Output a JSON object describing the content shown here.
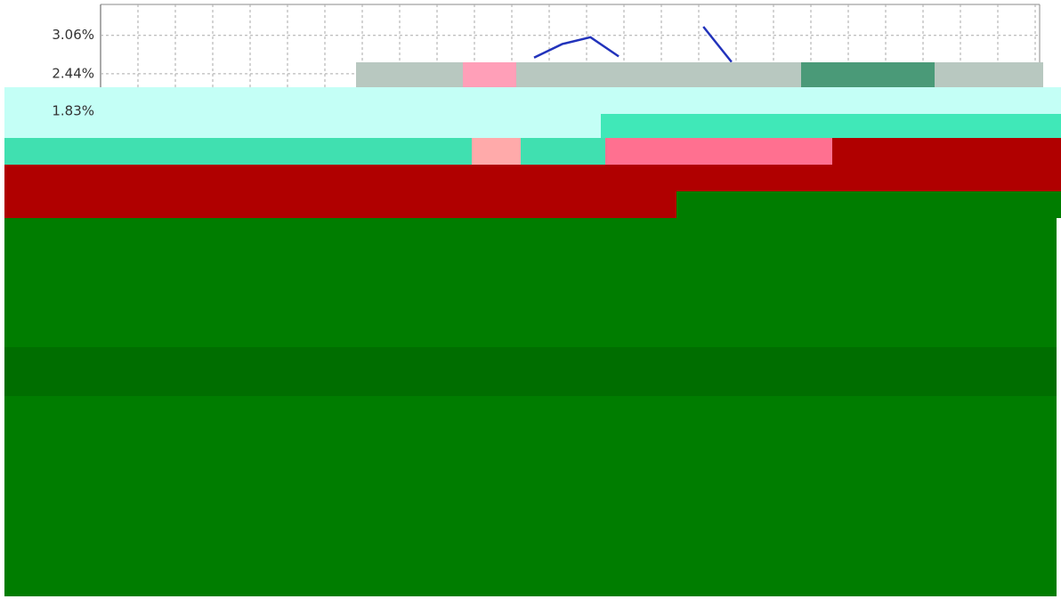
{
  "chart_data": {
    "type": "line",
    "categories": [
      null,
      null,
      null,
      null,
      null,
      null,
      null,
      null
    ],
    "series": [
      {
        "color": "#2233bb",
        "values": [
          2.7,
          2.92,
          3.03,
          2.72,
          null,
          null,
          3.2,
          2.63
        ]
      }
    ],
    "ylim": [
      1.22,
      3.56
    ],
    "yticks": [
      {
        "value": 3.06,
        "label": "3.06%"
      },
      {
        "value": 2.44,
        "label": "2.44%"
      },
      {
        "value": 1.83,
        "label": "1.83%"
      }
    ],
    "grid": true
  }
}
